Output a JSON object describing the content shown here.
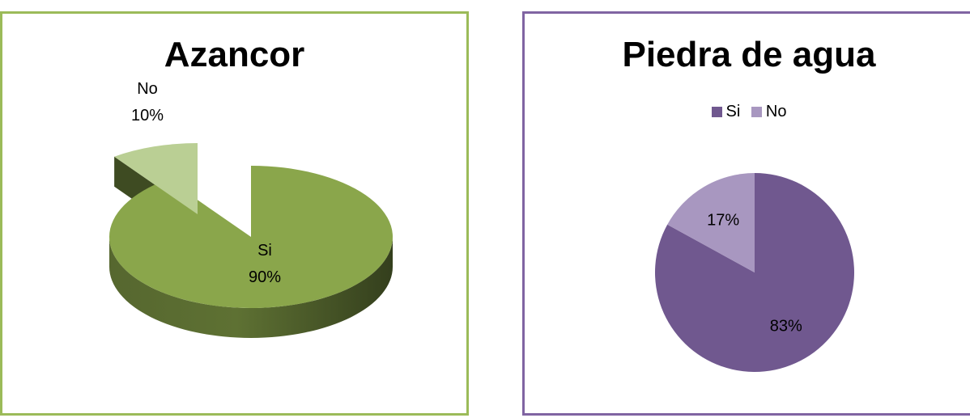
{
  "chart_data": [
    {
      "type": "pie",
      "title": "Azancor",
      "style": "3d-exploded",
      "categories": [
        "Si",
        "No"
      ],
      "values": [
        90,
        10
      ],
      "labels": [
        {
          "category": "Si",
          "percent": "90%"
        },
        {
          "category": "No",
          "percent": "10%"
        }
      ],
      "colors": [
        "#8AA64B",
        "#BACF94"
      ],
      "border_color": "#9BBB59"
    },
    {
      "type": "pie",
      "title": "Piedra de agua",
      "categories": [
        "Si",
        "No"
      ],
      "values": [
        83,
        17
      ],
      "labels": [
        "83%",
        "17%"
      ],
      "legend": [
        "Si",
        "No"
      ],
      "legend_position": "top",
      "colors": [
        "#70588F",
        "#A897C0"
      ],
      "border_color": "#8064A2"
    }
  ]
}
